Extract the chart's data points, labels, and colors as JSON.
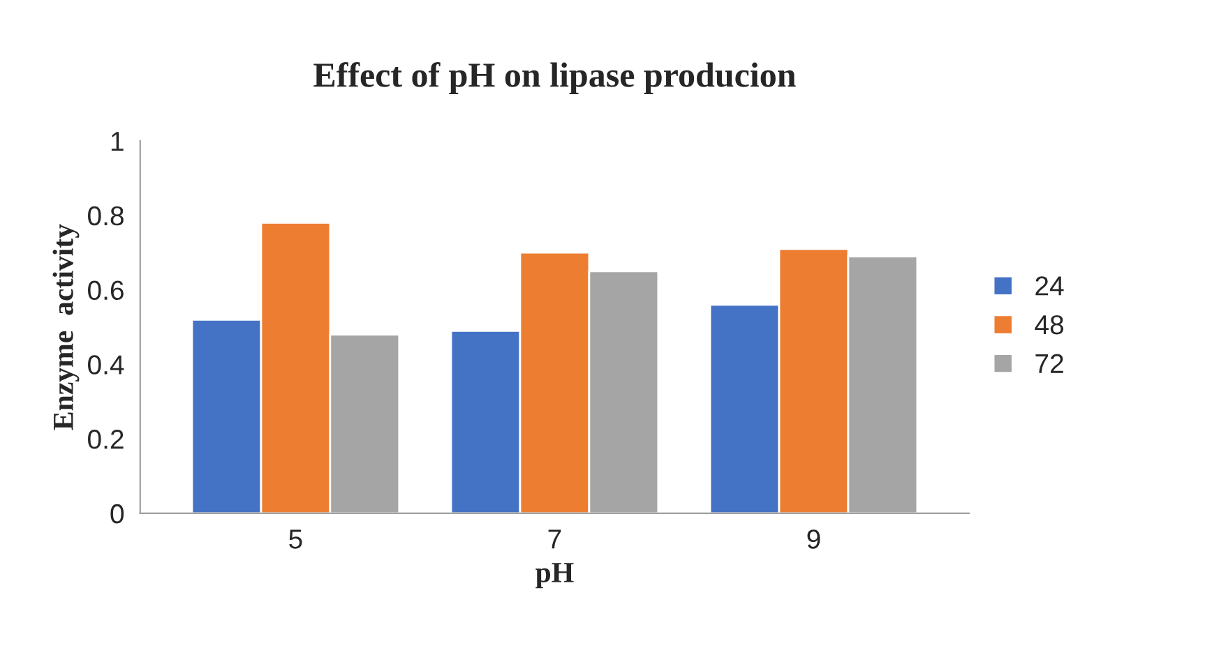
{
  "chart_data": {
    "type": "bar",
    "title": "Effect of pH on lipase producion",
    "xlabel": "pH",
    "ylabel": "Enzyme  activity",
    "categories": [
      "5",
      "7",
      "9"
    ],
    "series": [
      {
        "name": "24",
        "color": "#4472c4",
        "values": [
          0.52,
          0.49,
          0.56
        ]
      },
      {
        "name": "48",
        "color": "#ed7d31",
        "values": [
          0.78,
          0.7,
          0.71
        ]
      },
      {
        "name": "72",
        "color": "#a5a5a5",
        "values": [
          0.48,
          0.65,
          0.69
        ]
      }
    ],
    "ylim": [
      0,
      1
    ],
    "yticks": [
      0,
      0.2,
      0.4,
      0.6,
      0.8,
      1
    ],
    "grid": false,
    "legend": "right"
  }
}
